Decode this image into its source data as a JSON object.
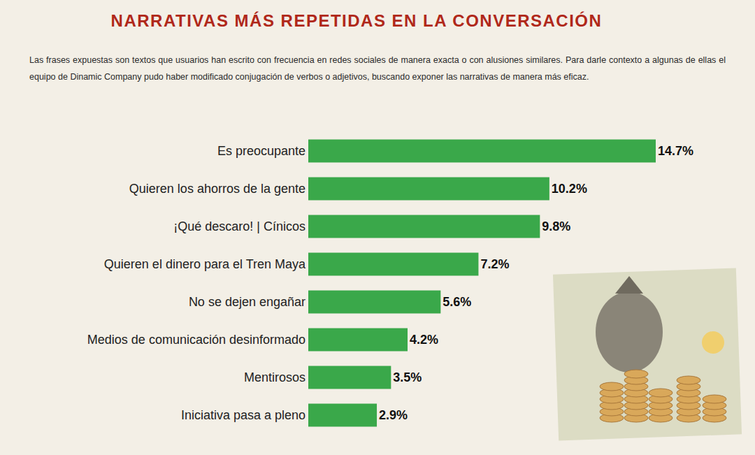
{
  "chart_data": {
    "type": "bar",
    "orientation": "horizontal",
    "title": "NARRATIVAS MÁS REPETIDAS EN LA CONVERSACIÓN",
    "subtitle": "Las frases expuestas son textos que usuarios han escrito con frecuencia en redes sociales de manera exacta o con alusiones similares. Para darle contexto a algunas de ellas el equipo de Dinamic Company pudo haber modificado conjugación de verbos o adjetivos, buscando exponer las narrativas de manera más eficaz.",
    "categories": [
      "Es preocupante",
      "Quieren los ahorros de la gente",
      "¡Qué descaro! | Cínicos",
      "Quieren el dinero para el Tren Maya",
      "No se dejen engañar",
      "Medios de comunicación desinformado",
      "Mentirosos",
      "Iniciativa pasa a pleno"
    ],
    "values": [
      14.7,
      10.2,
      9.8,
      7.2,
      5.6,
      4.2,
      3.5,
      2.9
    ],
    "value_labels": [
      "14.7%",
      "10.2%",
      "9.8%",
      "7.2%",
      "5.6%",
      "4.2%",
      "3.5%",
      "2.9%"
    ],
    "color": "#3aa84a",
    "xlim": [
      0,
      14.7
    ],
    "data_labels": true,
    "tick_labels": "y",
    "grid": false
  }
}
